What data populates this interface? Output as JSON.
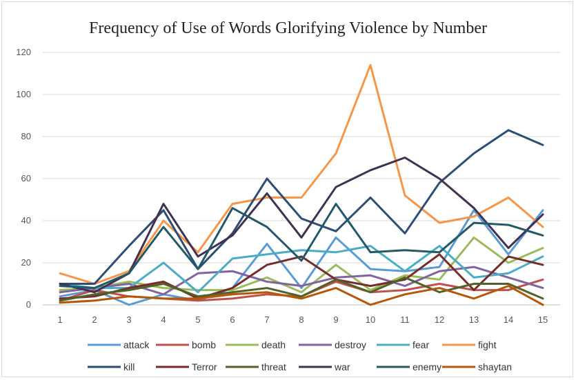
{
  "chart_data": {
    "type": "line",
    "title": "Frequency of Use of Words Glorifying Violence by Number",
    "xlabel": "",
    "ylabel": "",
    "x": [
      1,
      2,
      3,
      4,
      5,
      6,
      7,
      8,
      9,
      10,
      11,
      12,
      13,
      14,
      15
    ],
    "ylim": [
      0,
      120
    ],
    "yticks": [
      0,
      20,
      40,
      60,
      80,
      100,
      120
    ],
    "grid": true,
    "legend_position": "bottom",
    "series": [
      {
        "name": "attack",
        "color": "#5B9BD5",
        "values": [
          4,
          7,
          0,
          5,
          2,
          8,
          29,
          8,
          32,
          17,
          16,
          18,
          45,
          24,
          45
        ]
      },
      {
        "name": "bomb",
        "color": "#C0504D",
        "values": [
          2,
          7,
          4,
          3,
          2,
          3,
          5,
          4,
          11,
          6,
          7,
          10,
          7,
          7,
          12
        ]
      },
      {
        "name": "death",
        "color": "#9BBB59",
        "values": [
          7,
          8,
          11,
          8,
          7,
          7,
          13,
          6,
          19,
          7,
          14,
          12,
          32,
          20,
          27
        ]
      },
      {
        "name": "destroy",
        "color": "#8064A2",
        "values": [
          6,
          8,
          10,
          5,
          15,
          16,
          11,
          9,
          13,
          14,
          9,
          16,
          18,
          13,
          8
        ]
      },
      {
        "name": "fear",
        "color": "#4BACC6",
        "values": [
          10,
          8,
          8,
          20,
          6,
          22,
          24,
          26,
          25,
          28,
          16,
          28,
          13,
          15,
          23
        ]
      },
      {
        "name": "fight",
        "color": "#F79646",
        "values": [
          15,
          10,
          16,
          40,
          25,
          48,
          51,
          51,
          72,
          114,
          52,
          39,
          42,
          51,
          37
        ]
      },
      {
        "name": "kill",
        "color": "#2C4D75",
        "values": [
          10,
          10,
          28,
          45,
          17,
          34,
          60,
          41,
          35,
          51,
          34,
          58,
          72,
          83,
          76
        ]
      },
      {
        "name": "Terror",
        "color": "#772C2A",
        "values": [
          3,
          4,
          8,
          11,
          3,
          8,
          19,
          23,
          12,
          9,
          12,
          24,
          7,
          23,
          19
        ]
      },
      {
        "name": "threat",
        "color": "#4F6228",
        "values": [
          2,
          5,
          7,
          10,
          4,
          6,
          8,
          4,
          12,
          6,
          13,
          6,
          10,
          10,
          3
        ]
      },
      {
        "name": "war",
        "color": "#403152",
        "values": [
          10,
          6,
          15,
          48,
          23,
          33,
          53,
          32,
          56,
          64,
          70,
          60,
          46,
          27,
          43
        ]
      },
      {
        "name": "enemy",
        "color": "#215968",
        "values": [
          9,
          8,
          15,
          37,
          17,
          46,
          37,
          21,
          48,
          25,
          26,
          25,
          39,
          38,
          33
        ]
      },
      {
        "name": "shaytan",
        "color": "#B65708",
        "values": [
          1,
          2,
          4,
          3,
          3,
          5,
          6,
          3,
          8,
          0,
          5,
          8,
          3,
          9,
          0
        ]
      }
    ]
  }
}
